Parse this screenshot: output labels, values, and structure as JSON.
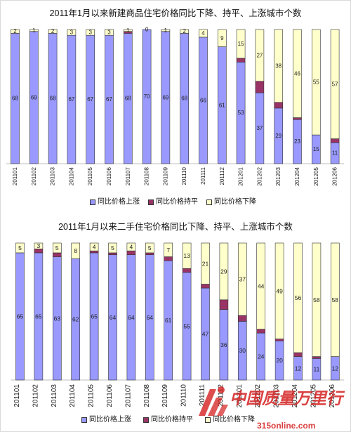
{
  "chart_data": [
    {
      "type": "bar",
      "stacked": true,
      "title": "2011年1月以来新建商品住宅价格同比下降、持平、上涨城市个数",
      "categories": [
        "201101",
        "201102",
        "201103",
        "201104",
        "201105",
        "201106",
        "201107",
        "201108",
        "201109",
        "201110",
        "201111",
        "201112",
        "201201",
        "201202",
        "201203",
        "201204",
        "201205",
        "201206"
      ],
      "ylim": [
        0,
        70
      ],
      "grid": false,
      "legend": "bottom",
      "series": [
        {
          "name": "同比价格上涨",
          "color": "#9999ff",
          "show_labels": true,
          "values": [
            68,
            69,
            68,
            67,
            67,
            67,
            68,
            70,
            69,
            68,
            66,
            61,
            53,
            37,
            29,
            23,
            15,
            11
          ]
        },
        {
          "name": "同比价格持平",
          "color": "#993366",
          "show_labels": false,
          "values": [
            0,
            0,
            0,
            0,
            0,
            0,
            1,
            0,
            0,
            0,
            0,
            0,
            2,
            6,
            3,
            1,
            0,
            2
          ]
        },
        {
          "name": "同比价格下降",
          "color": "#ffffcc",
          "show_labels": true,
          "values": [
            2,
            1,
            2,
            3,
            3,
            3,
            1,
            0,
            1,
            2,
            4,
            9,
            15,
            27,
            38,
            46,
            55,
            57
          ]
        }
      ]
    },
    {
      "type": "bar",
      "stacked": true,
      "title": "2011年1月以来二手住宅价格同比下降、持平、上涨城市个数",
      "categories": [
        "201101",
        "201102",
        "201103",
        "201104",
        "201105",
        "201106",
        "201107",
        "201108",
        "201109",
        "201110",
        "201111",
        "201112",
        "201201",
        "201202",
        "201203",
        "201204",
        "201205",
        "201206"
      ],
      "ylim": [
        0,
        70
      ],
      "grid": false,
      "legend": "bottom",
      "series": [
        {
          "name": "同比价格上涨",
          "color": "#9999ff",
          "show_labels": true,
          "values": [
            65,
            65,
            63,
            62,
            65,
            64,
            64,
            64,
            61,
            55,
            47,
            36,
            30,
            24,
            20,
            12,
            11,
            12
          ]
        },
        {
          "name": "同比价格持平",
          "color": "#993366",
          "show_labels": false,
          "values": [
            0,
            2,
            2,
            0,
            1,
            1,
            2,
            1,
            2,
            2,
            2,
            5,
            3,
            2,
            1,
            2,
            1,
            0
          ]
        },
        {
          "name": "同比价格下降",
          "color": "#ffffcc",
          "show_labels": true,
          "values": [
            5,
            3,
            5,
            8,
            4,
            5,
            4,
            5,
            7,
            13,
            21,
            29,
            37,
            44,
            49,
            56,
            58,
            58
          ]
        }
      ]
    }
  ],
  "watermark": {
    "name": "中国质量万里行",
    "site": "315online.com",
    "color": "#d42020"
  }
}
